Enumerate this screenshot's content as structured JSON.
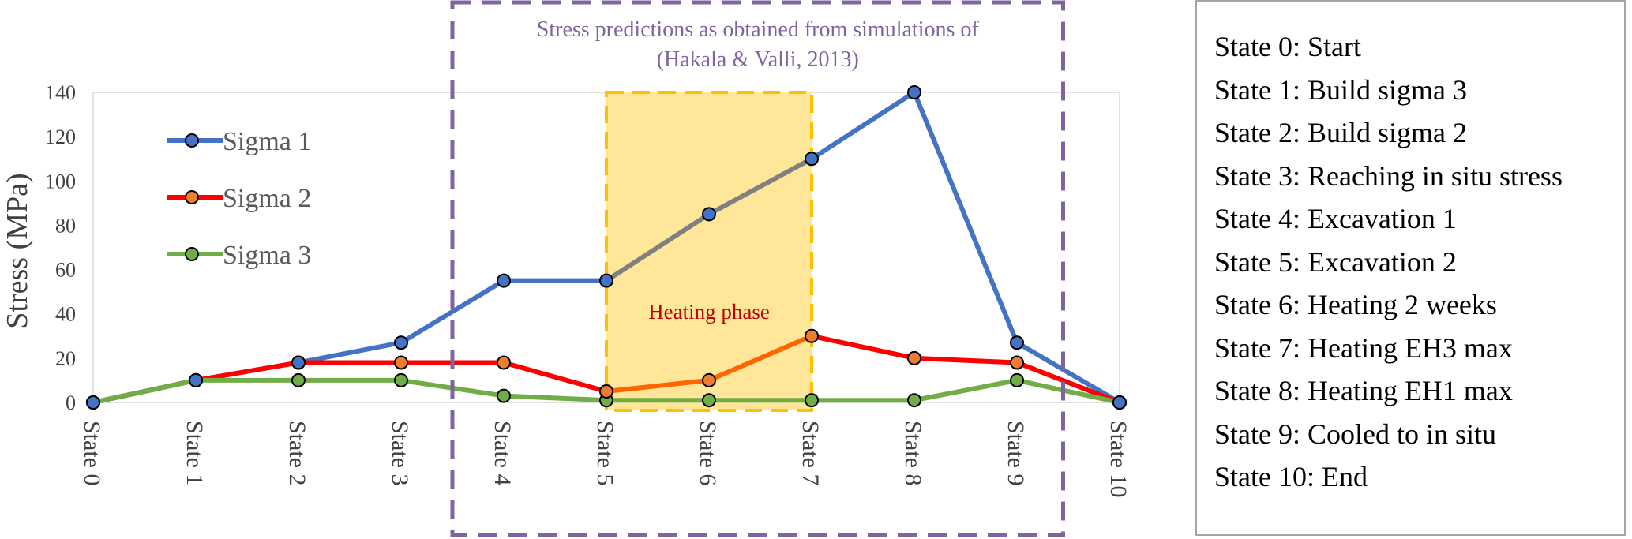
{
  "chart_data": {
    "type": "line",
    "categories": [
      "State 0",
      "State 1",
      "State 2",
      "State 3",
      "State 4",
      "State 5",
      "State 6",
      "State 7",
      "State 8",
      "State 9",
      "State 10"
    ],
    "ylabel": "Stress (MPa)",
    "ylim": [
      0,
      140
    ],
    "yticks": [
      0,
      20,
      40,
      60,
      80,
      100,
      120,
      140
    ],
    "legend": "top-left inside plot",
    "series": [
      {
        "name": "Sigma 1",
        "color": "#4472c4",
        "marker": "#4472c4",
        "values": [
          0,
          10,
          18,
          27,
          55,
          55,
          85,
          110,
          140,
          27,
          0
        ]
      },
      {
        "name": "Sigma 2",
        "color": "#ff0000",
        "marker": "#ed7d31",
        "values": [
          0,
          10,
          18,
          18,
          18,
          5,
          10,
          30,
          20,
          18,
          0
        ]
      },
      {
        "name": "Sigma 3",
        "color": "#70ad47",
        "marker": "#70ad47",
        "values": [
          0,
          10,
          10,
          10,
          3,
          1,
          1,
          1,
          1,
          10,
          0
        ]
      }
    ],
    "heating_segment_colors": {
      "sigma1": "#808080",
      "sigma2": "#ff6600",
      "sigma3": "#70ad47"
    },
    "simulation_box": {
      "label_line1": "Stress predictions as obtained from simulations of",
      "label_line2": "(Hakala & Valli, 2013)",
      "color": "#8064a2",
      "from_state": 3.5,
      "to_state": 9.45
    },
    "heating_box": {
      "label": "Heating phase",
      "fill": "#ffe699",
      "border": "#ffc000",
      "label_color": "#c00000",
      "from_state": 5,
      "to_state": 7
    }
  },
  "state_legend": [
    "State 0: Start",
    "State 1: Build sigma 3",
    "State 2: Build sigma 2",
    "State 3: Reaching in situ stress",
    "State 4: Excavation 1",
    "State 5: Excavation 2",
    "State 6: Heating 2 weeks",
    "State 7: Heating EH3 max",
    "State 8: Heating EH1 max",
    "State 9: Cooled to in situ",
    "State 10: End"
  ]
}
